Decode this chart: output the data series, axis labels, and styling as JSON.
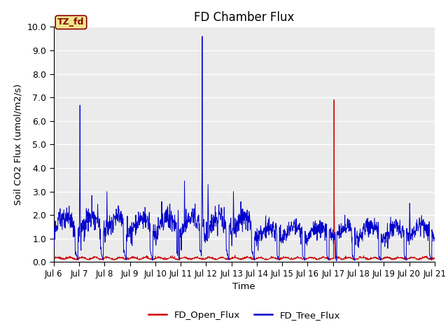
{
  "title": "FD Chamber Flux",
  "ylabel": "Soil CO2 Flux (umol/m2/s)",
  "xlabel": "Time",
  "ylim": [
    0.0,
    10.0
  ],
  "yticks": [
    0.0,
    1.0,
    2.0,
    3.0,
    4.0,
    5.0,
    6.0,
    7.0,
    8.0,
    9.0,
    10.0
  ],
  "xtick_labels": [
    "Jul 6",
    "Jul 7",
    "Jul 8",
    "Jul 9",
    "Jul 10",
    "Jul 11",
    "Jul 12",
    "Jul 13",
    "Jul 14",
    "Jul 15",
    "Jul 16",
    "Jul 17",
    "Jul 18",
    "Jul 19",
    "Jul 20",
    "Jul 21"
  ],
  "open_flux_color": "#cc0000",
  "tree_flux_color": "#0000cc",
  "background_color": "#ebebeb",
  "legend_label_open": "FD_Open_Flux",
  "legend_label_tree": "FD_Tree_Flux",
  "tz_label": "TZ_fd",
  "tz_bg": "#f0e68c",
  "tz_border": "#8b0000",
  "title_fontsize": 12,
  "n_points": 1440,
  "grid_color": "#ffffff",
  "fig_bg": "#ffffff"
}
